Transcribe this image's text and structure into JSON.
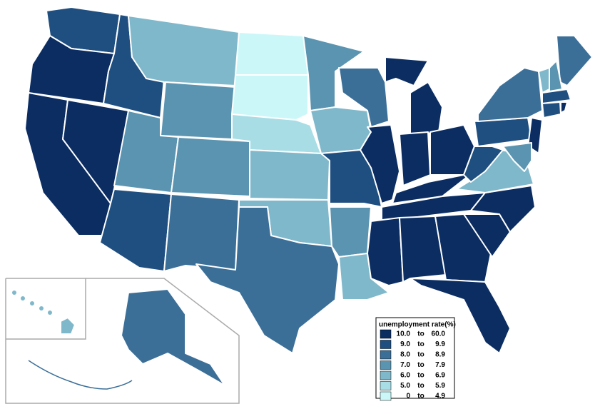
{
  "map": {
    "legend": {
      "title": "unemployment rate(%)",
      "separator": "to",
      "items": [
        {
          "from": {
            "value": 10,
            "label": "10.0"
          },
          "to": {
            "value": 60,
            "label": "60.0"
          },
          "color": "#0b2d62"
        },
        {
          "from": {
            "value": 9,
            "label": "9.0"
          },
          "to": 9.9,
          "color": "#1f4f80"
        },
        {
          "from": {
            "value": 8,
            "label": "8.0"
          },
          "to": 8.9,
          "color": "#3b6f98"
        },
        {
          "from": {
            "value": 7,
            "label": "7.0"
          },
          "to": 7.9,
          "color": "#5b94b0"
        },
        {
          "from": {
            "value": 6,
            "label": "6.0"
          },
          "to": 6.9,
          "color": "#80b8cb"
        },
        {
          "from": {
            "value": 5,
            "label": "5.0"
          },
          "to": 5.9,
          "color": "#a8dde6"
        },
        {
          "from": 0,
          "to": 4.9,
          "color": "#cbf7f9"
        }
      ]
    },
    "region_colors": [
      "#1f4f80",
      "#0b2d62",
      "#0b2d62",
      "#0b2d62",
      "#1f4f80",
      "#80b8cb",
      "#5b94b0",
      "#5b94b0",
      "#1f4f80",
      "#5b94b0",
      "#3b6f98",
      "#cbf7f9",
      "#cbf7f9",
      "#a8dde6",
      "#80b8cb",
      "#80b8cb",
      "#3b6f98",
      "#5b94b0",
      "#80b8cb",
      "#1f4f80",
      "#5b94b0",
      "#80b8cb",
      "#3b6f98",
      "#0b2d62",
      "#0b2d62",
      "#0b2d62",
      "#0b2d62",
      "#0b2d62",
      "#0b2d62",
      "#0b2d62",
      "#0b2d62",
      "#0b2d62",
      "#0b2d62",
      "#0b2d62",
      "#0b2d62",
      "#0b2d62",
      "#80b8cb",
      "#1f4f80",
      "#1f4f80",
      "#3b6f98",
      "#3b6f98",
      "#80b8cb",
      "#5b94b0",
      "#1f4f80",
      "#1f4f80",
      "#0b2d62",
      "#0b2d62",
      "#5b94b0",
      "#3b6f98",
      "#80b8cb"
    ]
  }
}
